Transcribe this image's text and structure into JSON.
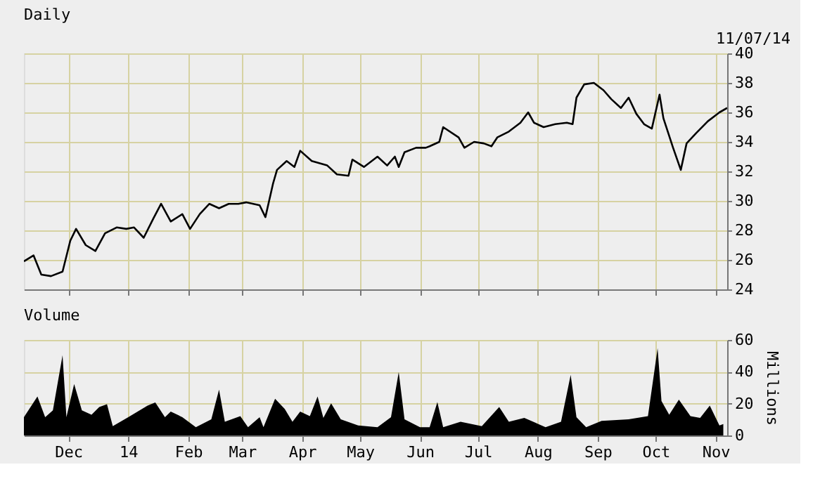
{
  "chart_data": [
    {
      "type": "line",
      "title": "Daily",
      "annotations": [
        "11/07/14"
      ],
      "x": [
        "2013-11-08",
        "2013-11-13",
        "2013-11-17",
        "2013-11-22",
        "2013-11-28",
        "2013-12-02",
        "2013-12-05",
        "2013-12-10",
        "2013-12-15",
        "2013-12-20",
        "2013-12-26",
        "2013-12-31",
        "2014-01-04",
        "2014-01-09",
        "2014-01-14",
        "2014-01-18",
        "2014-01-23",
        "2014-01-29",
        "2014-02-02",
        "2014-02-07",
        "2014-02-12",
        "2014-02-17",
        "2014-02-22",
        "2014-02-27",
        "2014-03-03",
        "2014-03-10",
        "2014-03-13",
        "2014-03-17",
        "2014-03-19",
        "2014-03-24",
        "2014-03-28",
        "2014-03-31",
        "2014-04-06",
        "2014-04-14",
        "2014-04-19",
        "2014-04-25",
        "2014-04-27",
        "2014-05-03",
        "2014-05-10",
        "2014-05-15",
        "2014-05-19",
        "2014-05-21",
        "2014-05-24",
        "2014-05-30",
        "2014-06-04",
        "2014-06-06",
        "2014-06-11",
        "2014-06-13",
        "2014-06-21",
        "2014-06-24",
        "2014-06-29",
        "2014-07-04",
        "2014-07-08",
        "2014-07-11",
        "2014-07-17",
        "2014-07-23",
        "2014-07-27",
        "2014-07-30",
        "2014-08-04",
        "2014-08-10",
        "2014-08-16",
        "2014-08-19",
        "2014-08-21",
        "2014-08-25",
        "2014-08-30",
        "2014-09-04",
        "2014-09-08",
        "2014-09-13",
        "2014-09-17",
        "2014-09-21",
        "2014-09-25",
        "2014-09-29",
        "2014-10-03",
        "2014-10-05",
        "2014-10-10",
        "2014-10-14",
        "2014-10-17",
        "2014-10-22",
        "2014-10-28",
        "2014-11-03",
        "2014-11-07"
      ],
      "series": [
        {
          "color": "#000000",
          "values": [
            25.9,
            26.3,
            25.0,
            24.9,
            25.2,
            27.3,
            28.1,
            27.0,
            26.6,
            27.8,
            28.2,
            28.1,
            28.2,
            27.5,
            28.8,
            29.8,
            28.6,
            29.1,
            28.1,
            29.1,
            29.8,
            29.5,
            29.8,
            29.8,
            29.9,
            29.7,
            28.9,
            31.2,
            32.1,
            32.7,
            32.3,
            33.4,
            32.7,
            32.4,
            31.8,
            31.7,
            32.8,
            32.3,
            33.0,
            32.4,
            33.0,
            32.3,
            33.3,
            33.6,
            33.6,
            33.7,
            34.0,
            35.0,
            34.3,
            33.6,
            34.0,
            33.9,
            33.7,
            34.3,
            34.7,
            35.3,
            36.0,
            35.3,
            35.0,
            35.2,
            35.3,
            35.2,
            37.0,
            37.9,
            38.0,
            37.5,
            36.9,
            36.3,
            37.0,
            35.9,
            35.2,
            34.9,
            37.2,
            35.6,
            33.6,
            32.1,
            33.9,
            34.6,
            35.4,
            36.0,
            36.3
          ]
        }
      ],
      "xlim": [
        "2013-11-08",
        "2014-11-07"
      ],
      "xticks": [
        {
          "value": "2013-12-01",
          "label": null
        },
        {
          "value": "2014-01-01",
          "label": null
        },
        {
          "value": "2014-02-01",
          "label": null
        },
        {
          "value": "2014-03-01",
          "label": null
        },
        {
          "value": "2014-04-01",
          "label": null
        },
        {
          "value": "2014-05-01",
          "label": null
        },
        {
          "value": "2014-06-01",
          "label": null
        },
        {
          "value": "2014-07-01",
          "label": null
        },
        {
          "value": "2014-08-01",
          "label": null
        },
        {
          "value": "2014-09-01",
          "label": null
        },
        {
          "value": "2014-10-01",
          "label": null
        },
        {
          "value": "2014-11-01",
          "label": null
        }
      ],
      "ylim": [
        24,
        40
      ],
      "yticks": [
        24,
        26,
        28,
        30,
        32,
        34,
        36,
        38,
        40
      ],
      "grid": true,
      "tick_labels": "y"
    },
    {
      "type": "area",
      "title": "Volume",
      "ylabel": "Millions",
      "x": [
        "2013-11-08",
        "2013-11-15",
        "2013-11-19",
        "2013-11-23",
        "2013-11-28",
        "2013-11-30",
        "2013-12-04",
        "2013-12-08",
        "2013-12-13",
        "2013-12-17",
        "2013-12-21",
        "2013-12-24",
        "2014-01-01",
        "2014-01-11",
        "2014-01-15",
        "2014-01-20",
        "2014-01-23",
        "2014-01-29",
        "2014-02-05",
        "2014-02-13",
        "2014-02-17",
        "2014-02-20",
        "2014-02-28",
        "2014-03-04",
        "2014-03-10",
        "2014-03-12",
        "2014-03-18",
        "2014-03-23",
        "2014-03-27",
        "2014-03-31",
        "2014-04-05",
        "2014-04-09",
        "2014-04-12",
        "2014-04-16",
        "2014-04-21",
        "2014-04-30",
        "2014-05-10",
        "2014-05-17",
        "2014-05-21",
        "2014-05-24",
        "2014-06-01",
        "2014-06-06",
        "2014-06-10",
        "2014-06-13",
        "2014-06-22",
        "2014-07-03",
        "2014-07-12",
        "2014-07-17",
        "2014-07-25",
        "2014-08-05",
        "2014-08-13",
        "2014-08-18",
        "2014-08-21",
        "2014-08-26",
        "2014-09-03",
        "2014-09-17",
        "2014-09-27",
        "2014-10-02",
        "2014-10-04",
        "2014-10-08",
        "2014-10-13",
        "2014-10-19",
        "2014-10-24",
        "2014-10-29",
        "2014-11-03",
        "2014-11-05"
      ],
      "series": [
        {
          "color": "#000000",
          "values": [
            11.5,
            24.5,
            11.5,
            15.8,
            50.4,
            11.5,
            32.3,
            15.8,
            13,
            17.9,
            19.6,
            5.8,
            11.5,
            18.7,
            20.7,
            11.5,
            15,
            11.5,
            5.2,
            10.1,
            28.8,
            8.6,
            12.1,
            5.2,
            11.5,
            5.2,
            23,
            16.7,
            8.6,
            15,
            12.1,
            24.5,
            11,
            20.2,
            10.1,
            6.3,
            5.2,
            11.5,
            39.8,
            10.1,
            5.2,
            5.2,
            21,
            5.2,
            8.6,
            5.8,
            17.9,
            8.6,
            11,
            5.2,
            8.6,
            38,
            11.5,
            5.2,
            9.2,
            10.1,
            12.1,
            54.8,
            21.6,
            13,
            22.5,
            12.1,
            11,
            18.7,
            6.3,
            7.2
          ]
        }
      ],
      "xlim": [
        "2013-11-08",
        "2014-11-07"
      ],
      "xticks": [
        {
          "value": "2013-12-01",
          "label": "Dec"
        },
        {
          "value": "2014-01-01",
          "label": "14"
        },
        {
          "value": "2014-02-01",
          "label": "Feb"
        },
        {
          "value": "2014-03-01",
          "label": "Mar"
        },
        {
          "value": "2014-04-01",
          "label": "Apr"
        },
        {
          "value": "2014-05-01",
          "label": "May"
        },
        {
          "value": "2014-06-01",
          "label": "Jun"
        },
        {
          "value": "2014-07-01",
          "label": "Jul"
        },
        {
          "value": "2014-08-01",
          "label": "Aug"
        },
        {
          "value": "2014-09-01",
          "label": "Sep"
        },
        {
          "value": "2014-10-01",
          "label": "Oct"
        },
        {
          "value": "2014-11-01",
          "label": "Nov"
        }
      ],
      "ylim": [
        0,
        60
      ],
      "yticks": [
        0,
        20,
        40,
        60
      ],
      "grid": true
    }
  ]
}
